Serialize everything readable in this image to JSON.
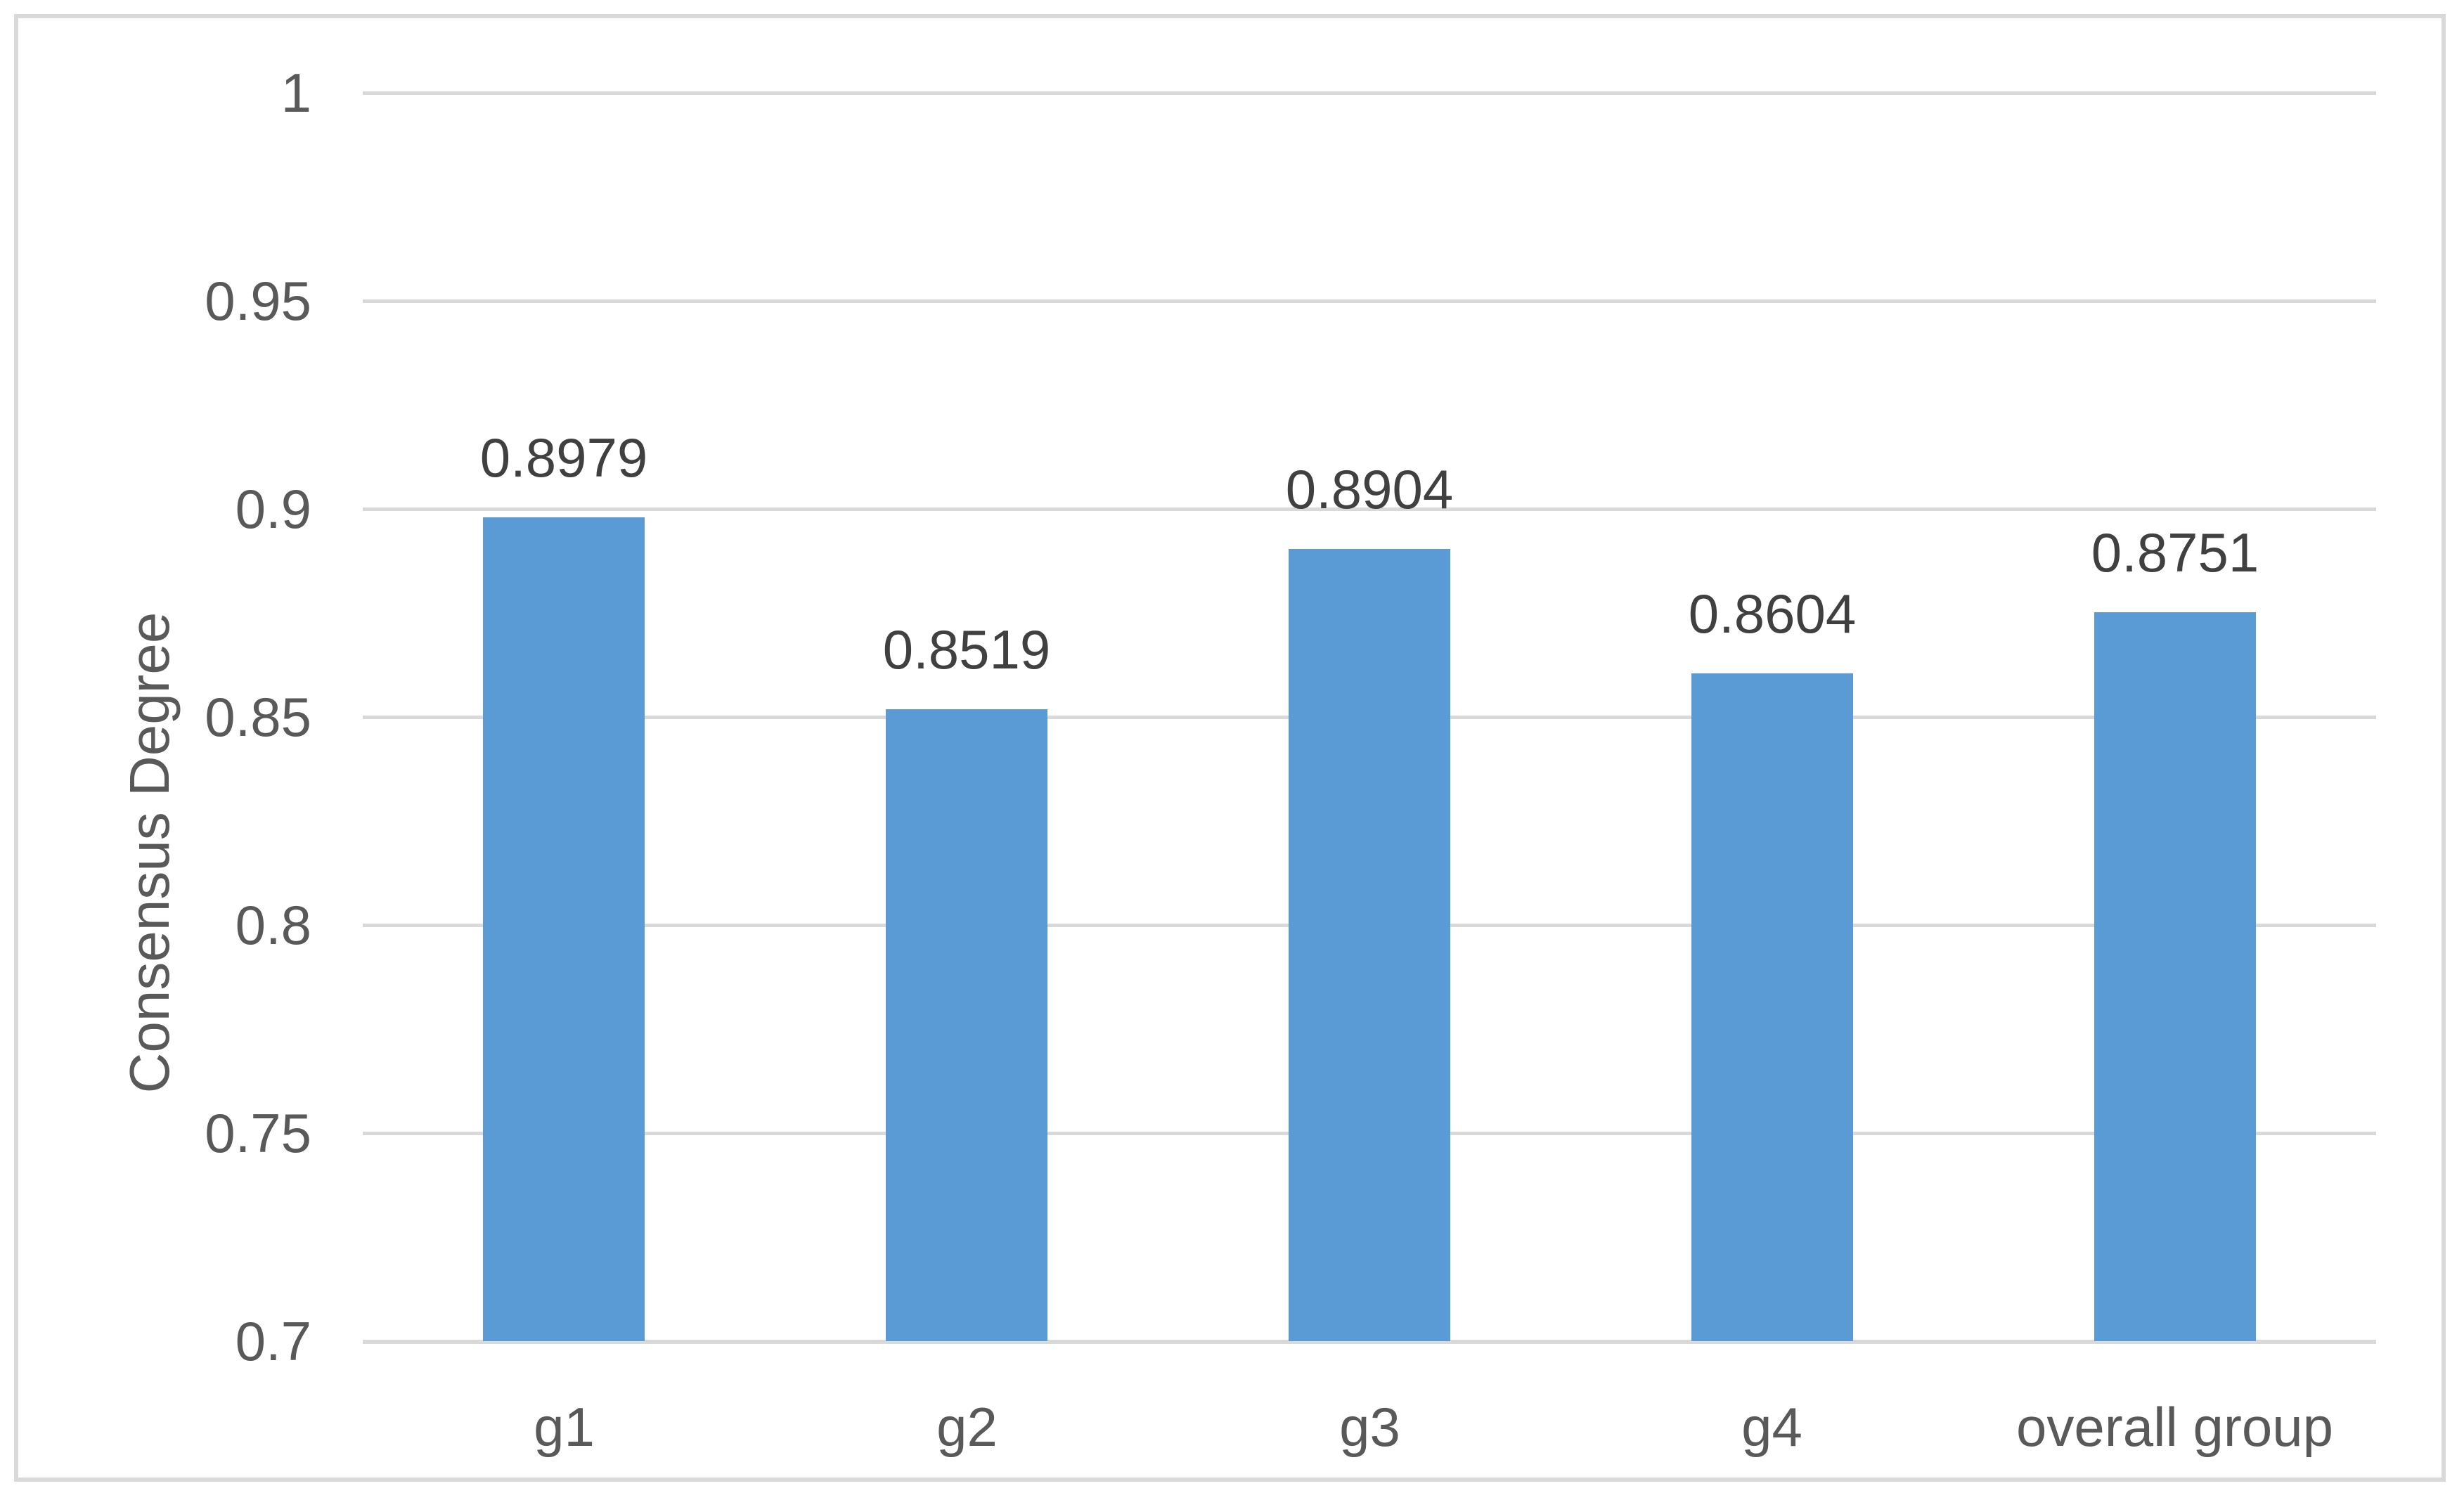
{
  "chart_data": {
    "type": "bar",
    "title": "",
    "xlabel": "",
    "ylabel": "Consensus Degree",
    "categories": [
      "g1",
      "g2",
      "g3",
      "g4",
      "overall group"
    ],
    "values": [
      0.8979,
      0.8519,
      0.8904,
      0.8604,
      0.8751
    ],
    "value_labels": [
      "0.8979",
      "0.8519",
      "0.8904",
      "0.8604",
      "0.8751"
    ],
    "ylim": [
      0.7,
      1.0
    ],
    "ytick_step": 0.05,
    "ytick_labels": [
      "0.7",
      "0.75",
      "0.8",
      "0.85",
      "0.9",
      "0.95",
      "1"
    ],
    "grid": true,
    "legend": false,
    "colors": {
      "bar_fill": "#5B9BD5",
      "gridline": "#D9D9D9",
      "axis_text": "#595959",
      "data_label_text": "#404040",
      "frame_border": "#D9D9D9",
      "background": "#FFFFFF"
    }
  }
}
